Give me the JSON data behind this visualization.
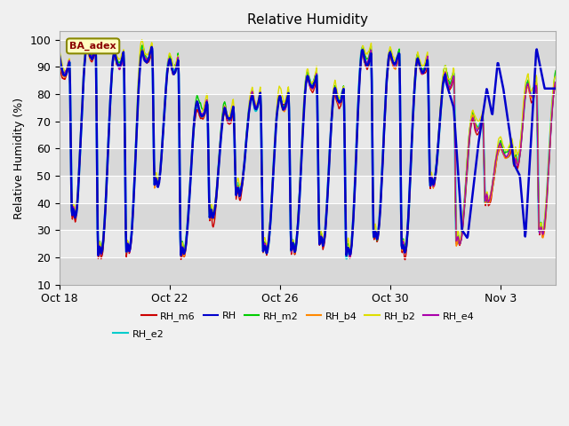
{
  "title": "Relative Humidity",
  "ylabel": "Relative Humidity (%)",
  "ylim": [
    10,
    103
  ],
  "yticks": [
    10,
    20,
    30,
    40,
    50,
    60,
    70,
    80,
    90,
    100
  ],
  "xtick_labels": [
    "Oct 18",
    "Oct 22",
    "Oct 26",
    "Oct 30",
    "Nov 3"
  ],
  "xtick_pos": [
    0,
    4,
    8,
    12,
    16
  ],
  "xlim": [
    0,
    18
  ],
  "series_colors": {
    "RH_m6": "#cc0000",
    "RH": "#0000cc",
    "RH_m2": "#00cc00",
    "RH_b4": "#ff8800",
    "RH_b2": "#dddd00",
    "RH_e4": "#aa00aa",
    "RH_e2": "#00cccc"
  },
  "ba_adex_label": "BA_adex",
  "legend_entries": [
    "RH_m6",
    "RH",
    "RH_m2",
    "RH_b4",
    "RH_b2",
    "RH_e4",
    "RH_e2"
  ],
  "fig_width": 6.4,
  "fig_height": 4.8,
  "dpi": 100,
  "bg_color": "#f0f0f0",
  "plot_bg": "#e8e8e8",
  "alt_band_color": "#d8d8d8",
  "grid_color": "#ffffff"
}
